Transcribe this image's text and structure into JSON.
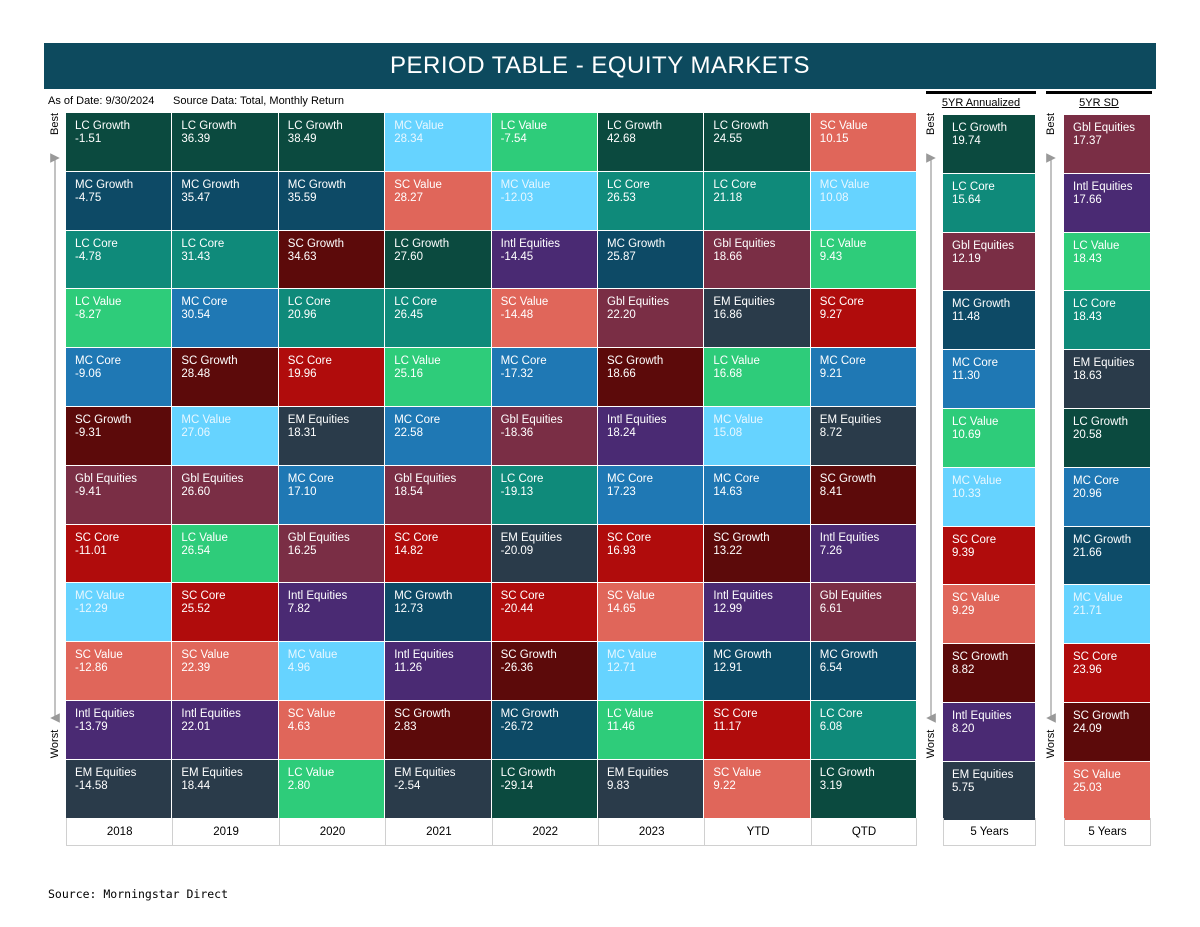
{
  "title": "PERIOD TABLE - EQUITY MARKETS",
  "as_of": "As of Date: 9/30/2024",
  "source_data": "Source Data: Total, Monthly Return",
  "source": "Source: Morningstar Direct",
  "axis": {
    "best": "Best",
    "worst": "Worst"
  },
  "colors": {
    "LC Growth": "#0b4a3f",
    "MC Growth": "#0d4a66",
    "LC Core": "#0f8a7a",
    "LC Value": "#2ecc7a",
    "MC Core": "#1f78b4",
    "SC Growth": "#5c0a0a",
    "MC Value": "#66d3ff",
    "SC Value": "#e0665a",
    "SC Core": "#b00c0c",
    "Gbl Equities": "#7a2e45",
    "Intl Equities": "#4a2a73",
    "EM Equities": "#2a3b4a"
  },
  "light_text_categories": [
    "MC Value"
  ],
  "chart_data": {
    "type": "table",
    "title": "PERIOD TABLE - EQUITY MARKETS",
    "main_panel": {
      "columns": [
        "2018",
        "2019",
        "2020",
        "2021",
        "2022",
        "2023",
        "YTD",
        "QTD"
      ],
      "cells": [
        [
          [
            "LC Growth",
            "-1.51"
          ],
          [
            "MC Growth",
            "-4.75"
          ],
          [
            "LC Core",
            "-4.78"
          ],
          [
            "LC Value",
            "-8.27"
          ],
          [
            "MC Core",
            "-9.06"
          ],
          [
            "SC Growth",
            "-9.31"
          ],
          [
            "Gbl Equities",
            "-9.41"
          ],
          [
            "SC Core",
            "-11.01"
          ],
          [
            "MC Value",
            "-12.29"
          ],
          [
            "SC Value",
            "-12.86"
          ],
          [
            "Intl Equities",
            "-13.79"
          ],
          [
            "EM Equities",
            "-14.58"
          ]
        ],
        [
          [
            "LC Growth",
            "36.39"
          ],
          [
            "MC Growth",
            "35.47"
          ],
          [
            "LC Core",
            "31.43"
          ],
          [
            "MC Core",
            "30.54"
          ],
          [
            "SC Growth",
            "28.48"
          ],
          [
            "MC Value",
            "27.06"
          ],
          [
            "Gbl Equities",
            "26.60"
          ],
          [
            "LC Value",
            "26.54"
          ],
          [
            "SC Core",
            "25.52"
          ],
          [
            "SC Value",
            "22.39"
          ],
          [
            "Intl Equities",
            "22.01"
          ],
          [
            "EM Equities",
            "18.44"
          ]
        ],
        [
          [
            "LC Growth",
            "38.49"
          ],
          [
            "MC Growth",
            "35.59"
          ],
          [
            "SC Growth",
            "34.63"
          ],
          [
            "LC Core",
            "20.96"
          ],
          [
            "SC Core",
            "19.96"
          ],
          [
            "EM Equities",
            "18.31"
          ],
          [
            "MC Core",
            "17.10"
          ],
          [
            "Gbl Equities",
            "16.25"
          ],
          [
            "Intl Equities",
            "7.82"
          ],
          [
            "MC Value",
            "4.96"
          ],
          [
            "SC Value",
            "4.63"
          ],
          [
            "LC Value",
            "2.80"
          ]
        ],
        [
          [
            "MC Value",
            "28.34"
          ],
          [
            "SC Value",
            "28.27"
          ],
          [
            "LC Growth",
            "27.60"
          ],
          [
            "LC Core",
            "26.45"
          ],
          [
            "LC Value",
            "25.16"
          ],
          [
            "MC Core",
            "22.58"
          ],
          [
            "Gbl Equities",
            "18.54"
          ],
          [
            "SC Core",
            "14.82"
          ],
          [
            "MC Growth",
            "12.73"
          ],
          [
            "Intl Equities",
            "11.26"
          ],
          [
            "SC Growth",
            "2.83"
          ],
          [
            "EM Equities",
            "-2.54"
          ]
        ],
        [
          [
            "LC Value",
            "-7.54"
          ],
          [
            "MC Value",
            "-12.03"
          ],
          [
            "Intl Equities",
            "-14.45"
          ],
          [
            "SC Value",
            "-14.48"
          ],
          [
            "MC Core",
            "-17.32"
          ],
          [
            "Gbl Equities",
            "-18.36"
          ],
          [
            "LC Core",
            "-19.13"
          ],
          [
            "EM Equities",
            "-20.09"
          ],
          [
            "SC Core",
            "-20.44"
          ],
          [
            "SC Growth",
            "-26.36"
          ],
          [
            "MC Growth",
            "-26.72"
          ],
          [
            "LC Growth",
            "-29.14"
          ]
        ],
        [
          [
            "LC Growth",
            "42.68"
          ],
          [
            "LC Core",
            "26.53"
          ],
          [
            "MC Growth",
            "25.87"
          ],
          [
            "Gbl Equities",
            "22.20"
          ],
          [
            "SC Growth",
            "18.66"
          ],
          [
            "Intl Equities",
            "18.24"
          ],
          [
            "MC Core",
            "17.23"
          ],
          [
            "SC Core",
            "16.93"
          ],
          [
            "SC Value",
            "14.65"
          ],
          [
            "MC Value",
            "12.71"
          ],
          [
            "LC Value",
            "11.46"
          ],
          [
            "EM Equities",
            "9.83"
          ]
        ],
        [
          [
            "LC Growth",
            "24.55"
          ],
          [
            "LC Core",
            "21.18"
          ],
          [
            "Gbl Equities",
            "18.66"
          ],
          [
            "EM Equities",
            "16.86"
          ],
          [
            "LC Value",
            "16.68"
          ],
          [
            "MC Value",
            "15.08"
          ],
          [
            "MC Core",
            "14.63"
          ],
          [
            "SC Growth",
            "13.22"
          ],
          [
            "Intl Equities",
            "12.99"
          ],
          [
            "MC Growth",
            "12.91"
          ],
          [
            "SC Core",
            "11.17"
          ],
          [
            "SC Value",
            "9.22"
          ]
        ],
        [
          [
            "SC Value",
            "10.15"
          ],
          [
            "MC Value",
            "10.08"
          ],
          [
            "LC Value",
            "9.43"
          ],
          [
            "SC Core",
            "9.27"
          ],
          [
            "MC Core",
            "9.21"
          ],
          [
            "EM Equities",
            "8.72"
          ],
          [
            "SC Growth",
            "8.41"
          ],
          [
            "Intl Equities",
            "7.26"
          ],
          [
            "Gbl Equities",
            "6.61"
          ],
          [
            "MC Growth",
            "6.54"
          ],
          [
            "LC Core",
            "6.08"
          ],
          [
            "LC Growth",
            "3.19"
          ]
        ]
      ]
    },
    "annualized_panel": {
      "header": "5YR Annualized",
      "column": "5 Years",
      "cells": [
        [
          "LC Growth",
          "19.74"
        ],
        [
          "LC Core",
          "15.64"
        ],
        [
          "Gbl Equities",
          "12.19"
        ],
        [
          "MC Growth",
          "11.48"
        ],
        [
          "MC Core",
          "11.30"
        ],
        [
          "LC Value",
          "10.69"
        ],
        [
          "MC Value",
          "10.33"
        ],
        [
          "SC Core",
          "9.39"
        ],
        [
          "SC Value",
          "9.29"
        ],
        [
          "SC Growth",
          "8.82"
        ],
        [
          "Intl Equities",
          "8.20"
        ],
        [
          "EM Equities",
          "5.75"
        ]
      ]
    },
    "sd_panel": {
      "header": "5YR SD",
      "column": "5 Years",
      "cells": [
        [
          "Gbl Equities",
          "17.37"
        ],
        [
          "Intl Equities",
          "17.66"
        ],
        [
          "LC Value",
          "18.43"
        ],
        [
          "LC Core",
          "18.43"
        ],
        [
          "EM Equities",
          "18.63"
        ],
        [
          "LC Growth",
          "20.58"
        ],
        [
          "MC Core",
          "20.96"
        ],
        [
          "MC Growth",
          "21.66"
        ],
        [
          "MC Value",
          "21.71"
        ],
        [
          "SC Core",
          "23.96"
        ],
        [
          "SC Growth",
          "24.09"
        ],
        [
          "SC Value",
          "25.03"
        ]
      ]
    }
  }
}
